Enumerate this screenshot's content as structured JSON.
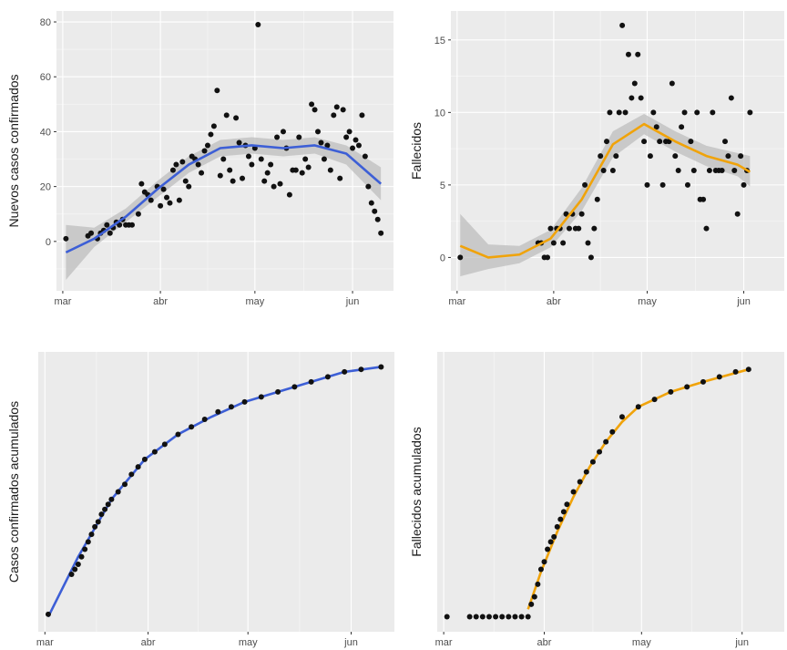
{
  "colors": {
    "panel_bg": "#ebebeb",
    "grid_major": "#ffffff",
    "grid_minor": "#f5f5f5",
    "point": "#111111",
    "blue": "#3d5fd6",
    "orange": "#f0a30a",
    "ribbon": "#bdbdbd"
  },
  "chart_data": [
    {
      "type": "scatter",
      "ylabel": "Nuevos casos confirmados",
      "xlabel": "",
      "x_tick_labels": [
        "mar",
        "abr",
        "may",
        "jun"
      ],
      "y_ticks": [
        0,
        20,
        40,
        60,
        80
      ],
      "xlim": [
        -2,
        105
      ],
      "ylim": [
        -18,
        84
      ],
      "grid": true,
      "smooth": "loess",
      "smooth_color": "blue",
      "points": [
        [
          1,
          1
        ],
        [
          8,
          2
        ],
        [
          9,
          3
        ],
        [
          11,
          1
        ],
        [
          12,
          3
        ],
        [
          13,
          4
        ],
        [
          14,
          6
        ],
        [
          15,
          3
        ],
        [
          16,
          5
        ],
        [
          17,
          7
        ],
        [
          18,
          6
        ],
        [
          19,
          8
        ],
        [
          20,
          6
        ],
        [
          21,
          6
        ],
        [
          22,
          6
        ],
        [
          24,
          10
        ],
        [
          25,
          21
        ],
        [
          26,
          18
        ],
        [
          27,
          17
        ],
        [
          28,
          15
        ],
        [
          30,
          20
        ],
        [
          31,
          13
        ],
        [
          32,
          19
        ],
        [
          33,
          16
        ],
        [
          34,
          14
        ],
        [
          35,
          26
        ],
        [
          36,
          28
        ],
        [
          37,
          15
        ],
        [
          38,
          29
        ],
        [
          39,
          22
        ],
        [
          40,
          20
        ],
        [
          41,
          31
        ],
        [
          42,
          30
        ],
        [
          43,
          28
        ],
        [
          44,
          25
        ],
        [
          45,
          33
        ],
        [
          46,
          35
        ],
        [
          47,
          39
        ],
        [
          48,
          42
        ],
        [
          49,
          55
        ],
        [
          50,
          24
        ],
        [
          51,
          30
        ],
        [
          52,
          46
        ],
        [
          53,
          26
        ],
        [
          54,
          22
        ],
        [
          55,
          45
        ],
        [
          56,
          36
        ],
        [
          57,
          23
        ],
        [
          58,
          35
        ],
        [
          59,
          31
        ],
        [
          60,
          28
        ],
        [
          61,
          34
        ],
        [
          62,
          79
        ],
        [
          63,
          30
        ],
        [
          64,
          22
        ],
        [
          65,
          25
        ],
        [
          66,
          28
        ],
        [
          67,
          20
        ],
        [
          68,
          38
        ],
        [
          69,
          21
        ],
        [
          70,
          40
        ],
        [
          71,
          34
        ],
        [
          72,
          17
        ],
        [
          73,
          26
        ],
        [
          74,
          26
        ],
        [
          75,
          38
        ],
        [
          76,
          25
        ],
        [
          77,
          30
        ],
        [
          78,
          27
        ],
        [
          79,
          50
        ],
        [
          80,
          48
        ],
        [
          81,
          40
        ],
        [
          82,
          36
        ],
        [
          83,
          30
        ],
        [
          84,
          35
        ],
        [
          85,
          26
        ],
        [
          86,
          46
        ],
        [
          87,
          49
        ],
        [
          88,
          23
        ],
        [
          89,
          48
        ],
        [
          90,
          38
        ],
        [
          91,
          40
        ],
        [
          92,
          34
        ],
        [
          93,
          37
        ],
        [
          94,
          35
        ],
        [
          95,
          46
        ],
        [
          96,
          31
        ],
        [
          97,
          20
        ],
        [
          98,
          14
        ],
        [
          99,
          11
        ],
        [
          100,
          8
        ],
        [
          101,
          3
        ]
      ],
      "trend": [
        [
          1,
          -4
        ],
        [
          10,
          1
        ],
        [
          20,
          9
        ],
        [
          30,
          19
        ],
        [
          40,
          28
        ],
        [
          50,
          34
        ],
        [
          60,
          35
        ],
        [
          70,
          34
        ],
        [
          80,
          35
        ],
        [
          90,
          32
        ],
        [
          101,
          21
        ]
      ],
      "ribbon": [
        [
          1,
          -14,
          6
        ],
        [
          10,
          -2,
          5
        ],
        [
          20,
          7,
          12
        ],
        [
          30,
          16,
          22
        ],
        [
          40,
          25,
          31
        ],
        [
          50,
          31,
          37
        ],
        [
          60,
          32,
          38
        ],
        [
          70,
          31,
          37
        ],
        [
          80,
          32,
          38
        ],
        [
          90,
          28,
          35
        ],
        [
          101,
          15,
          27
        ]
      ]
    },
    {
      "type": "scatter",
      "ylabel": "Fallecidos",
      "xlabel": "",
      "x_tick_labels": [
        "mar",
        "abr",
        "may",
        "jun"
      ],
      "y_ticks": [
        0,
        5,
        10,
        15
      ],
      "xlim": [
        -2,
        105
      ],
      "ylim": [
        -2.3,
        17
      ],
      "grid": true,
      "smooth": "loess",
      "smooth_color": "orange",
      "points": [
        [
          1,
          0
        ],
        [
          26,
          1
        ],
        [
          27,
          1
        ],
        [
          28,
          0
        ],
        [
          29,
          0
        ],
        [
          30,
          2
        ],
        [
          31,
          1
        ],
        [
          32,
          2
        ],
        [
          33,
          2
        ],
        [
          34,
          1
        ],
        [
          35,
          3
        ],
        [
          36,
          2
        ],
        [
          37,
          3
        ],
        [
          38,
          2
        ],
        [
          39,
          2
        ],
        [
          40,
          3
        ],
        [
          41,
          5
        ],
        [
          42,
          1
        ],
        [
          43,
          0
        ],
        [
          44,
          2
        ],
        [
          45,
          4
        ],
        [
          46,
          7
        ],
        [
          47,
          6
        ],
        [
          48,
          8
        ],
        [
          49,
          10
        ],
        [
          50,
          6
        ],
        [
          51,
          7
        ],
        [
          52,
          10
        ],
        [
          53,
          16
        ],
        [
          54,
          10
        ],
        [
          55,
          14
        ],
        [
          56,
          11
        ],
        [
          57,
          12
        ],
        [
          58,
          14
        ],
        [
          59,
          11
        ],
        [
          60,
          8
        ],
        [
          61,
          5
        ],
        [
          62,
          7
        ],
        [
          63,
          10
        ],
        [
          64,
          9
        ],
        [
          65,
          8
        ],
        [
          66,
          5
        ],
        [
          67,
          8
        ],
        [
          68,
          8
        ],
        [
          69,
          12
        ],
        [
          70,
          7
        ],
        [
          71,
          6
        ],
        [
          72,
          9
        ],
        [
          73,
          10
        ],
        [
          74,
          5
        ],
        [
          75,
          8
        ],
        [
          76,
          6
        ],
        [
          77,
          10
        ],
        [
          78,
          4
        ],
        [
          79,
          4
        ],
        [
          80,
          2
        ],
        [
          81,
          6
        ],
        [
          82,
          10
        ],
        [
          83,
          6
        ],
        [
          84,
          6
        ],
        [
          85,
          6
        ],
        [
          86,
          8
        ],
        [
          87,
          7
        ],
        [
          88,
          11
        ],
        [
          89,
          6
        ],
        [
          90,
          3
        ],
        [
          91,
          7
        ],
        [
          92,
          5
        ],
        [
          93,
          6
        ],
        [
          94,
          10
        ]
      ],
      "trend": [
        [
          1,
          0.8
        ],
        [
          10,
          0
        ],
        [
          20,
          0.2
        ],
        [
          30,
          1.3
        ],
        [
          40,
          4
        ],
        [
          50,
          7.8
        ],
        [
          60,
          9.2
        ],
        [
          70,
          8
        ],
        [
          80,
          7
        ],
        [
          90,
          6.4
        ],
        [
          94,
          5.9
        ]
      ],
      "ribbon": [
        [
          1,
          -1.3,
          3
        ],
        [
          10,
          -0.8,
          0.9
        ],
        [
          20,
          -0.4,
          0.8
        ],
        [
          30,
          0.7,
          1.9
        ],
        [
          40,
          3.2,
          4.8
        ],
        [
          50,
          6.9,
          8.7
        ],
        [
          60,
          8.5,
          9.9
        ],
        [
          70,
          7.3,
          8.7
        ],
        [
          80,
          6.3,
          7.7
        ],
        [
          90,
          5.6,
          7.2
        ],
        [
          94,
          4.9,
          7
        ]
      ]
    },
    {
      "type": "line",
      "ylabel": "Casos confirmados acumulados",
      "xlabel": "",
      "x_tick_labels": [
        "mar",
        "abr",
        "may",
        "jun"
      ],
      "y_ticks": [],
      "xlim": [
        -2,
        105
      ],
      "ylim": [
        -0.06,
        1.06
      ],
      "grid": true,
      "smooth_color": "blue",
      "points": [
        [
          1,
          0.01
        ],
        [
          8,
          0.17
        ],
        [
          9,
          0.19
        ],
        [
          10,
          0.21
        ],
        [
          11,
          0.24
        ],
        [
          12,
          0.27
        ],
        [
          13,
          0.3
        ],
        [
          14,
          0.33
        ],
        [
          15,
          0.36
        ],
        [
          16,
          0.38
        ],
        [
          17,
          0.41
        ],
        [
          18,
          0.43
        ],
        [
          19,
          0.45
        ],
        [
          20,
          0.47
        ],
        [
          22,
          0.5
        ],
        [
          24,
          0.53
        ],
        [
          26,
          0.57
        ],
        [
          28,
          0.6
        ],
        [
          30,
          0.63
        ],
        [
          33,
          0.66
        ],
        [
          36,
          0.69
        ],
        [
          40,
          0.73
        ],
        [
          44,
          0.76
        ],
        [
          48,
          0.79
        ],
        [
          52,
          0.82
        ],
        [
          56,
          0.84
        ],
        [
          60,
          0.86
        ],
        [
          65,
          0.88
        ],
        [
          70,
          0.9
        ],
        [
          75,
          0.92
        ],
        [
          80,
          0.94
        ],
        [
          85,
          0.96
        ],
        [
          90,
          0.98
        ],
        [
          95,
          0.99
        ],
        [
          101,
          1.0
        ]
      ],
      "trend": [
        [
          1,
          0
        ],
        [
          10,
          0.24
        ],
        [
          20,
          0.47
        ],
        [
          30,
          0.63
        ],
        [
          40,
          0.73
        ],
        [
          50,
          0.8
        ],
        [
          60,
          0.86
        ],
        [
          70,
          0.9
        ],
        [
          80,
          0.94
        ],
        [
          90,
          0.98
        ],
        [
          101,
          1
        ]
      ]
    },
    {
      "type": "line",
      "ylabel": "Fallecidos acumulados",
      "xlabel": "",
      "x_tick_labels": [
        "mar",
        "abr",
        "may",
        "jun"
      ],
      "y_ticks": [],
      "xlim": [
        -2,
        105
      ],
      "ylim": [
        -0.06,
        1.06
      ],
      "grid": true,
      "smooth_color": "orange",
      "points": [
        [
          1,
          0
        ],
        [
          8,
          0
        ],
        [
          10,
          0
        ],
        [
          12,
          0
        ],
        [
          14,
          0
        ],
        [
          16,
          0
        ],
        [
          18,
          0
        ],
        [
          20,
          0
        ],
        [
          22,
          0
        ],
        [
          24,
          0
        ],
        [
          26,
          0
        ],
        [
          27,
          0.05
        ],
        [
          28,
          0.08
        ],
        [
          29,
          0.13
        ],
        [
          30,
          0.19
        ],
        [
          31,
          0.22
        ],
        [
          32,
          0.27
        ],
        [
          33,
          0.3
        ],
        [
          34,
          0.32
        ],
        [
          35,
          0.36
        ],
        [
          36,
          0.39
        ],
        [
          37,
          0.42
        ],
        [
          38,
          0.45
        ],
        [
          40,
          0.5
        ],
        [
          42,
          0.54
        ],
        [
          44,
          0.58
        ],
        [
          46,
          0.62
        ],
        [
          48,
          0.66
        ],
        [
          50,
          0.7
        ],
        [
          52,
          0.74
        ],
        [
          55,
          0.8
        ],
        [
          60,
          0.84
        ],
        [
          65,
          0.87
        ],
        [
          70,
          0.9
        ],
        [
          75,
          0.92
        ],
        [
          80,
          0.94
        ],
        [
          85,
          0.96
        ],
        [
          90,
          0.98
        ],
        [
          94,
          0.99
        ]
      ],
      "trend": [
        [
          26,
          0.03
        ],
        [
          30,
          0.18
        ],
        [
          35,
          0.34
        ],
        [
          40,
          0.48
        ],
        [
          45,
          0.6
        ],
        [
          50,
          0.7
        ],
        [
          55,
          0.78
        ],
        [
          60,
          0.84
        ],
        [
          70,
          0.9
        ],
        [
          80,
          0.94
        ],
        [
          94,
          0.99
        ]
      ]
    }
  ]
}
